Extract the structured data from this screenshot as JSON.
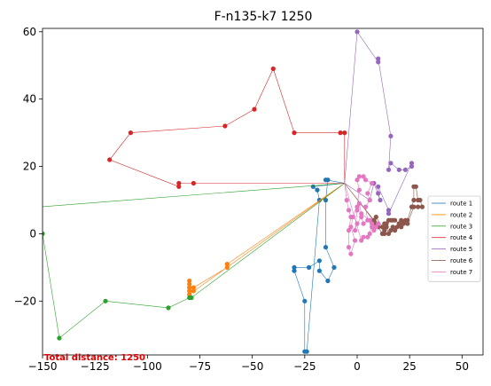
{
  "chart_data": {
    "type": "line",
    "title": "F-n135-k7 1250",
    "xlabel": "",
    "ylabel": "",
    "xlim": [
      -150,
      60
    ],
    "ylim": [
      -36,
      61
    ],
    "xticks": [
      -150,
      -125,
      -100,
      -75,
      -50,
      -25,
      0,
      25,
      50
    ],
    "yticks": [
      -20,
      0,
      20,
      40,
      60
    ],
    "tick_labels_x": [
      "−150",
      "−125",
      "−100",
      "−75",
      "−50",
      "−25",
      "0",
      "25",
      "50"
    ],
    "tick_labels_y": [
      "−20",
      "0",
      "20",
      "40",
      "60"
    ],
    "grid": false,
    "legend_position": "right",
    "depot": [
      -6,
      15
    ],
    "annotation": "Total distance: 1250",
    "series": [
      {
        "name": "route 1",
        "color": "#1f77b4",
        "points": [
          [
            -6,
            15
          ],
          [
            -15,
            16
          ],
          [
            -14,
            16
          ],
          [
            -15,
            10
          ],
          [
            -15,
            -4
          ],
          [
            -11,
            -10
          ],
          [
            -14,
            -14
          ],
          [
            -18,
            -11
          ],
          [
            -18,
            -8
          ],
          [
            -23,
            -10
          ],
          [
            -30,
            -10
          ],
          [
            -30,
            -11
          ],
          [
            -25,
            -20
          ],
          [
            -25,
            -35
          ],
          [
            -24,
            -35
          ],
          [
            -18,
            10
          ],
          [
            -19,
            13
          ],
          [
            -21,
            14
          ],
          [
            -6,
            15
          ]
        ]
      },
      {
        "name": "route 2",
        "color": "#ff7f0e",
        "points": [
          [
            -6,
            15
          ],
          [
            -62,
            -9
          ],
          [
            -62,
            -10
          ],
          [
            -78,
            -16
          ],
          [
            -78,
            -17
          ],
          [
            -80,
            -17
          ],
          [
            -80,
            -16
          ],
          [
            -80,
            -15
          ],
          [
            -80,
            -14
          ],
          [
            -80,
            -18
          ],
          [
            -6,
            15
          ]
        ]
      },
      {
        "name": "route 3",
        "color": "#2ca02c",
        "points": [
          [
            -6,
            15
          ],
          [
            -79,
            -19
          ],
          [
            -80,
            -19
          ],
          [
            -90,
            -22
          ],
          [
            -120,
            -20
          ],
          [
            -142,
            -31
          ],
          [
            -150,
            0
          ],
          [
            -151,
            8
          ],
          [
            -6,
            15
          ]
        ]
      },
      {
        "name": "route 4",
        "color": "#d62728",
        "points": [
          [
            -6,
            15
          ],
          [
            -78,
            15
          ],
          [
            -85,
            15
          ],
          [
            -85,
            14
          ],
          [
            -118,
            22
          ],
          [
            -108,
            30
          ],
          [
            -63,
            32
          ],
          [
            -49,
            37
          ],
          [
            -40,
            49
          ],
          [
            -30,
            30
          ],
          [
            -8,
            30
          ],
          [
            -6,
            30
          ],
          [
            -6,
            15
          ]
        ]
      },
      {
        "name": "route 5",
        "color": "#9467bd",
        "points": [
          [
            -6,
            15
          ],
          [
            0,
            60
          ],
          [
            10,
            51
          ],
          [
            10,
            52
          ],
          [
            16,
            29
          ],
          [
            15,
            19
          ],
          [
            16,
            21
          ],
          [
            20,
            19
          ],
          [
            23,
            19
          ],
          [
            26,
            20
          ],
          [
            26,
            21
          ],
          [
            15,
            6
          ],
          [
            15,
            7
          ],
          [
            10,
            14
          ],
          [
            10,
            12
          ],
          [
            11,
            10
          ],
          [
            8,
            15
          ],
          [
            6,
            10
          ],
          [
            -6,
            15
          ]
        ]
      },
      {
        "name": "route 6",
        "color": "#8c564b",
        "points": [
          [
            -6,
            15
          ],
          [
            8,
            4
          ],
          [
            10,
            2
          ],
          [
            12,
            0
          ],
          [
            13,
            1
          ],
          [
            13,
            2
          ],
          [
            13,
            3
          ],
          [
            14,
            3
          ],
          [
            15,
            4
          ],
          [
            16,
            4
          ],
          [
            17,
            4
          ],
          [
            18,
            4
          ],
          [
            20,
            3
          ],
          [
            21,
            4
          ],
          [
            22,
            3
          ],
          [
            23,
            4
          ],
          [
            24,
            4
          ],
          [
            26,
            8
          ],
          [
            27,
            10
          ],
          [
            27,
            14
          ],
          [
            28,
            14
          ],
          [
            29,
            10
          ],
          [
            30,
            10
          ],
          [
            31,
            8
          ],
          [
            29,
            8
          ],
          [
            27,
            8
          ],
          [
            24,
            3
          ],
          [
            22,
            3
          ],
          [
            21,
            2
          ],
          [
            20,
            3
          ],
          [
            19,
            2
          ],
          [
            18,
            1
          ],
          [
            17,
            2
          ],
          [
            16,
            1
          ],
          [
            15,
            0
          ],
          [
            14,
            2
          ],
          [
            13,
            0
          ],
          [
            12,
            2
          ],
          [
            9,
            5
          ],
          [
            9,
            3
          ],
          [
            -6,
            15
          ]
        ]
      },
      {
        "name": "route 7",
        "color": "#e377c2",
        "points": [
          [
            -6,
            15
          ],
          [
            -5,
            10
          ],
          [
            -4,
            7
          ],
          [
            -3,
            5
          ],
          [
            -4,
            1
          ],
          [
            -4,
            -4
          ],
          [
            -3,
            -6
          ],
          [
            -1,
            -2
          ],
          [
            -3,
            2
          ],
          [
            -2,
            5
          ],
          [
            0,
            8
          ],
          [
            1,
            13
          ],
          [
            0,
            16
          ],
          [
            1,
            17
          ],
          [
            3,
            17
          ],
          [
            4,
            16
          ],
          [
            7,
            15
          ],
          [
            5,
            12
          ],
          [
            6,
            10
          ],
          [
            4,
            8
          ],
          [
            5,
            4
          ],
          [
            3,
            3
          ],
          [
            2,
            5
          ],
          [
            0,
            3
          ],
          [
            -1,
            1
          ],
          [
            0,
            7
          ],
          [
            1,
            9
          ],
          [
            2,
            6
          ],
          [
            6,
            4
          ],
          [
            7,
            2
          ],
          [
            8,
            1
          ],
          [
            10,
            3
          ],
          [
            9,
            2
          ],
          [
            7,
            3
          ],
          [
            6,
            0
          ],
          [
            5,
            -1
          ],
          [
            3,
            -1
          ],
          [
            2,
            -2
          ],
          [
            -6,
            15
          ]
        ]
      }
    ]
  }
}
